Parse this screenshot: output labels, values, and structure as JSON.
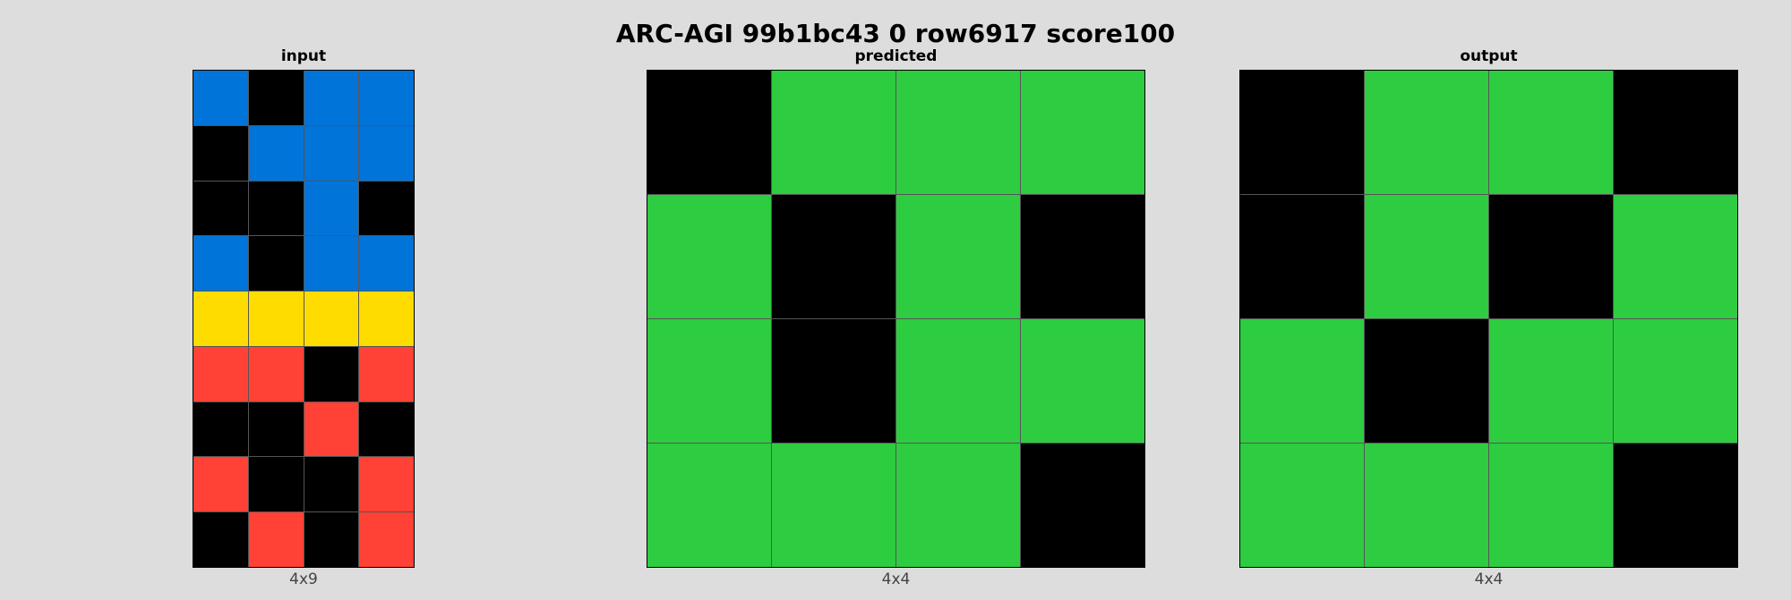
{
  "title": "ARC-AGI 99b1bc43 0 row6917 score100",
  "colors": {
    "0": "#000000",
    "1": "#0074D9",
    "2": "#FF4136",
    "3": "#2ECC40",
    "4": "#FFDC00"
  },
  "panels": [
    {
      "label": "input",
      "caption": "4x9",
      "rows": [
        [
          1,
          0,
          1,
          1
        ],
        [
          0,
          1,
          1,
          1
        ],
        [
          0,
          0,
          1,
          0
        ],
        [
          1,
          0,
          1,
          1
        ],
        [
          4,
          4,
          4,
          4
        ],
        [
          2,
          2,
          0,
          2
        ],
        [
          0,
          0,
          2,
          0
        ],
        [
          2,
          0,
          0,
          2
        ],
        [
          0,
          2,
          0,
          2
        ]
      ]
    },
    {
      "label": "predicted",
      "caption": "4x4",
      "rows": [
        [
          0,
          3,
          3,
          3
        ],
        [
          3,
          0,
          3,
          0
        ],
        [
          3,
          0,
          3,
          3
        ],
        [
          3,
          3,
          3,
          0
        ]
      ]
    },
    {
      "label": "output",
      "caption": "4x4",
      "rows": [
        [
          0,
          3,
          3,
          0
        ],
        [
          0,
          3,
          0,
          3
        ],
        [
          3,
          0,
          3,
          3
        ],
        [
          3,
          3,
          3,
          0
        ]
      ]
    }
  ]
}
